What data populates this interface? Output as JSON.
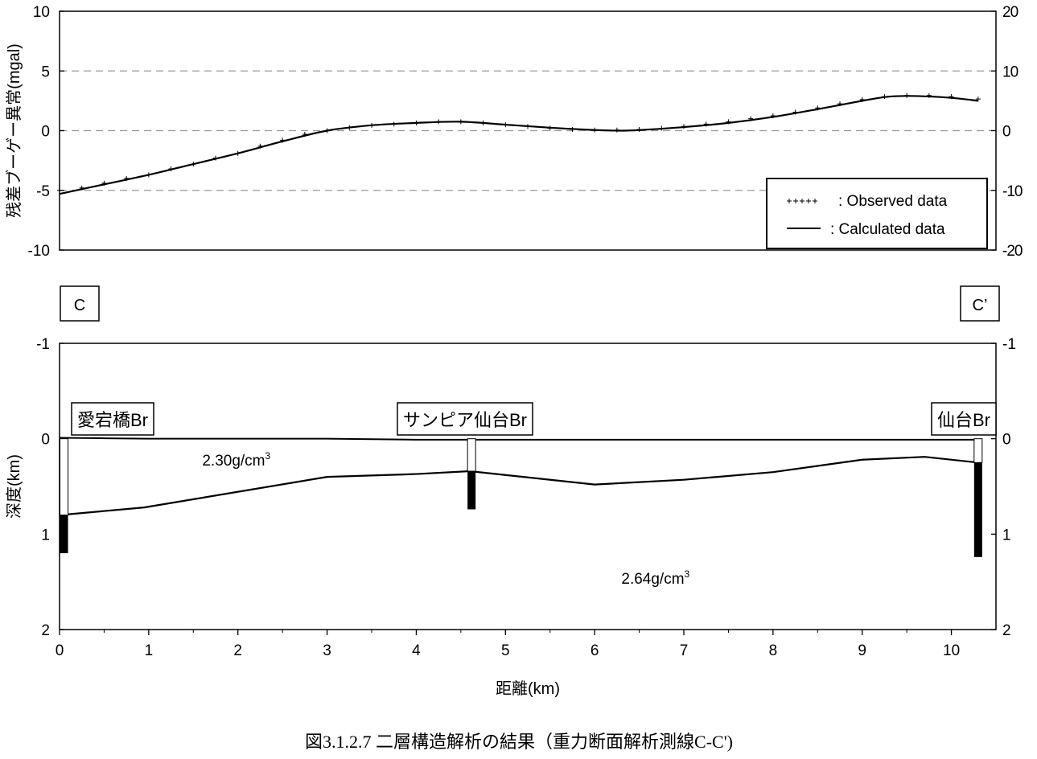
{
  "caption": "図3.1.2.7 二層構造解析の結果（重力断面解析測線C-C')",
  "chart_data": [
    {
      "type": "line",
      "ylabel": "残差ブーゲー異常(mgal)",
      "xlim": [
        0,
        10.5
      ],
      "ylim": [
        -10,
        10
      ],
      "ylim_right": [
        -20,
        20
      ],
      "yticks": [
        "10",
        "5",
        "0",
        "-5",
        "-10"
      ],
      "yticks_right": [
        "20",
        "10",
        "0",
        "-10",
        "-20"
      ],
      "grid": "dashed horizontal at 5, 0, -5",
      "legend_position": "bottom-right",
      "series": [
        {
          "name": "Observed data",
          "legend_label": ": Observed data",
          "marker": "+",
          "x": [
            0.0,
            0.25,
            0.5,
            0.75,
            1.0,
            1.25,
            1.5,
            1.75,
            2.0,
            2.25,
            2.5,
            2.75,
            3.0,
            3.25,
            3.5,
            3.75,
            4.0,
            4.25,
            4.5,
            4.75,
            5.0,
            5.25,
            5.5,
            5.75,
            6.0,
            6.25,
            6.5,
            6.75,
            7.0,
            7.25,
            7.5,
            7.75,
            8.0,
            8.25,
            8.5,
            8.75,
            9.0,
            9.25,
            9.5,
            9.75,
            10.0,
            10.3
          ],
          "y": [
            -5.0,
            -4.8,
            -4.4,
            -4.0,
            -3.7,
            -3.2,
            -2.8,
            -2.3,
            -1.9,
            -1.3,
            -0.8,
            -0.3,
            0.0,
            0.25,
            0.45,
            0.55,
            0.65,
            0.75,
            0.75,
            0.65,
            0.5,
            0.35,
            0.2,
            0.1,
            0.05,
            0.05,
            0.1,
            0.2,
            0.35,
            0.55,
            0.75,
            1.0,
            1.25,
            1.55,
            1.9,
            2.25,
            2.6,
            2.85,
            2.95,
            2.95,
            2.85,
            2.65
          ]
        },
        {
          "name": "Calculated data",
          "legend_label": ": Calculated data",
          "x": [
            0.0,
            0.5,
            1.0,
            1.5,
            2.0,
            2.5,
            3.0,
            3.5,
            4.0,
            4.5,
            5.0,
            5.5,
            6.0,
            6.3,
            6.5,
            7.0,
            7.5,
            8.0,
            8.5,
            9.0,
            9.3,
            9.6,
            10.0,
            10.3
          ],
          "y": [
            -5.3,
            -4.5,
            -3.7,
            -2.8,
            -1.9,
            -0.9,
            0.0,
            0.45,
            0.65,
            0.75,
            0.5,
            0.25,
            0.05,
            0.0,
            0.05,
            0.3,
            0.65,
            1.15,
            1.8,
            2.5,
            2.85,
            2.9,
            2.75,
            2.5
          ]
        }
      ]
    },
    {
      "type": "line",
      "xlabel": "距離(km)",
      "ylabel": "深度(km)",
      "xlim": [
        0,
        10.5
      ],
      "ylim": [
        2,
        -1
      ],
      "y_inverted": true,
      "xticks": [
        "0",
        "1",
        "2",
        "3",
        "4",
        "5",
        "6",
        "7",
        "8",
        "9",
        "10"
      ],
      "yticks": [
        "-1",
        "0",
        "1",
        "2"
      ],
      "yticks_right": [
        "-1",
        "0",
        "1",
        "2"
      ],
      "section_labels": {
        "left": "C",
        "right": "C’"
      },
      "layers": [
        {
          "density_label": "2.30g/cm",
          "superscript": "3",
          "x": 1.6,
          "y": 0.28
        },
        {
          "density_label": "2.64g/cm",
          "superscript": "3",
          "x": 6.3,
          "y": 1.52
        }
      ],
      "surface_line": {
        "x": [
          0,
          0.5,
          1,
          2,
          3,
          4,
          5,
          6,
          7,
          8,
          9,
          10,
          10.3
        ],
        "y": [
          -0.01,
          -0.005,
          0.0,
          0.0,
          0.0,
          0.01,
          0.01,
          0.01,
          0.01,
          0.01,
          0.01,
          0.01,
          0.01
        ]
      },
      "boundary_line": {
        "x": [
          0.0,
          0.95,
          3.0,
          4.0,
          4.6,
          6.0,
          7.0,
          8.0,
          9.0,
          9.7,
          10.3
        ],
        "y": [
          0.8,
          0.72,
          0.4,
          0.37,
          0.34,
          0.48,
          0.43,
          0.35,
          0.22,
          0.19,
          0.25
        ]
      },
      "boreholes": [
        {
          "label": "愛宕橋Br",
          "x": 0.05,
          "white_from": 0.0,
          "white_to": 0.8,
          "black_to": 1.2
        },
        {
          "label": "サンピア仙台Br",
          "x": 4.62,
          "white_from": 0.0,
          "white_to": 0.34,
          "black_to": 0.74
        },
        {
          "label": "仙台Br",
          "x": 10.3,
          "white_from": 0.0,
          "white_to": 0.25,
          "black_to": 1.24
        }
      ]
    }
  ]
}
